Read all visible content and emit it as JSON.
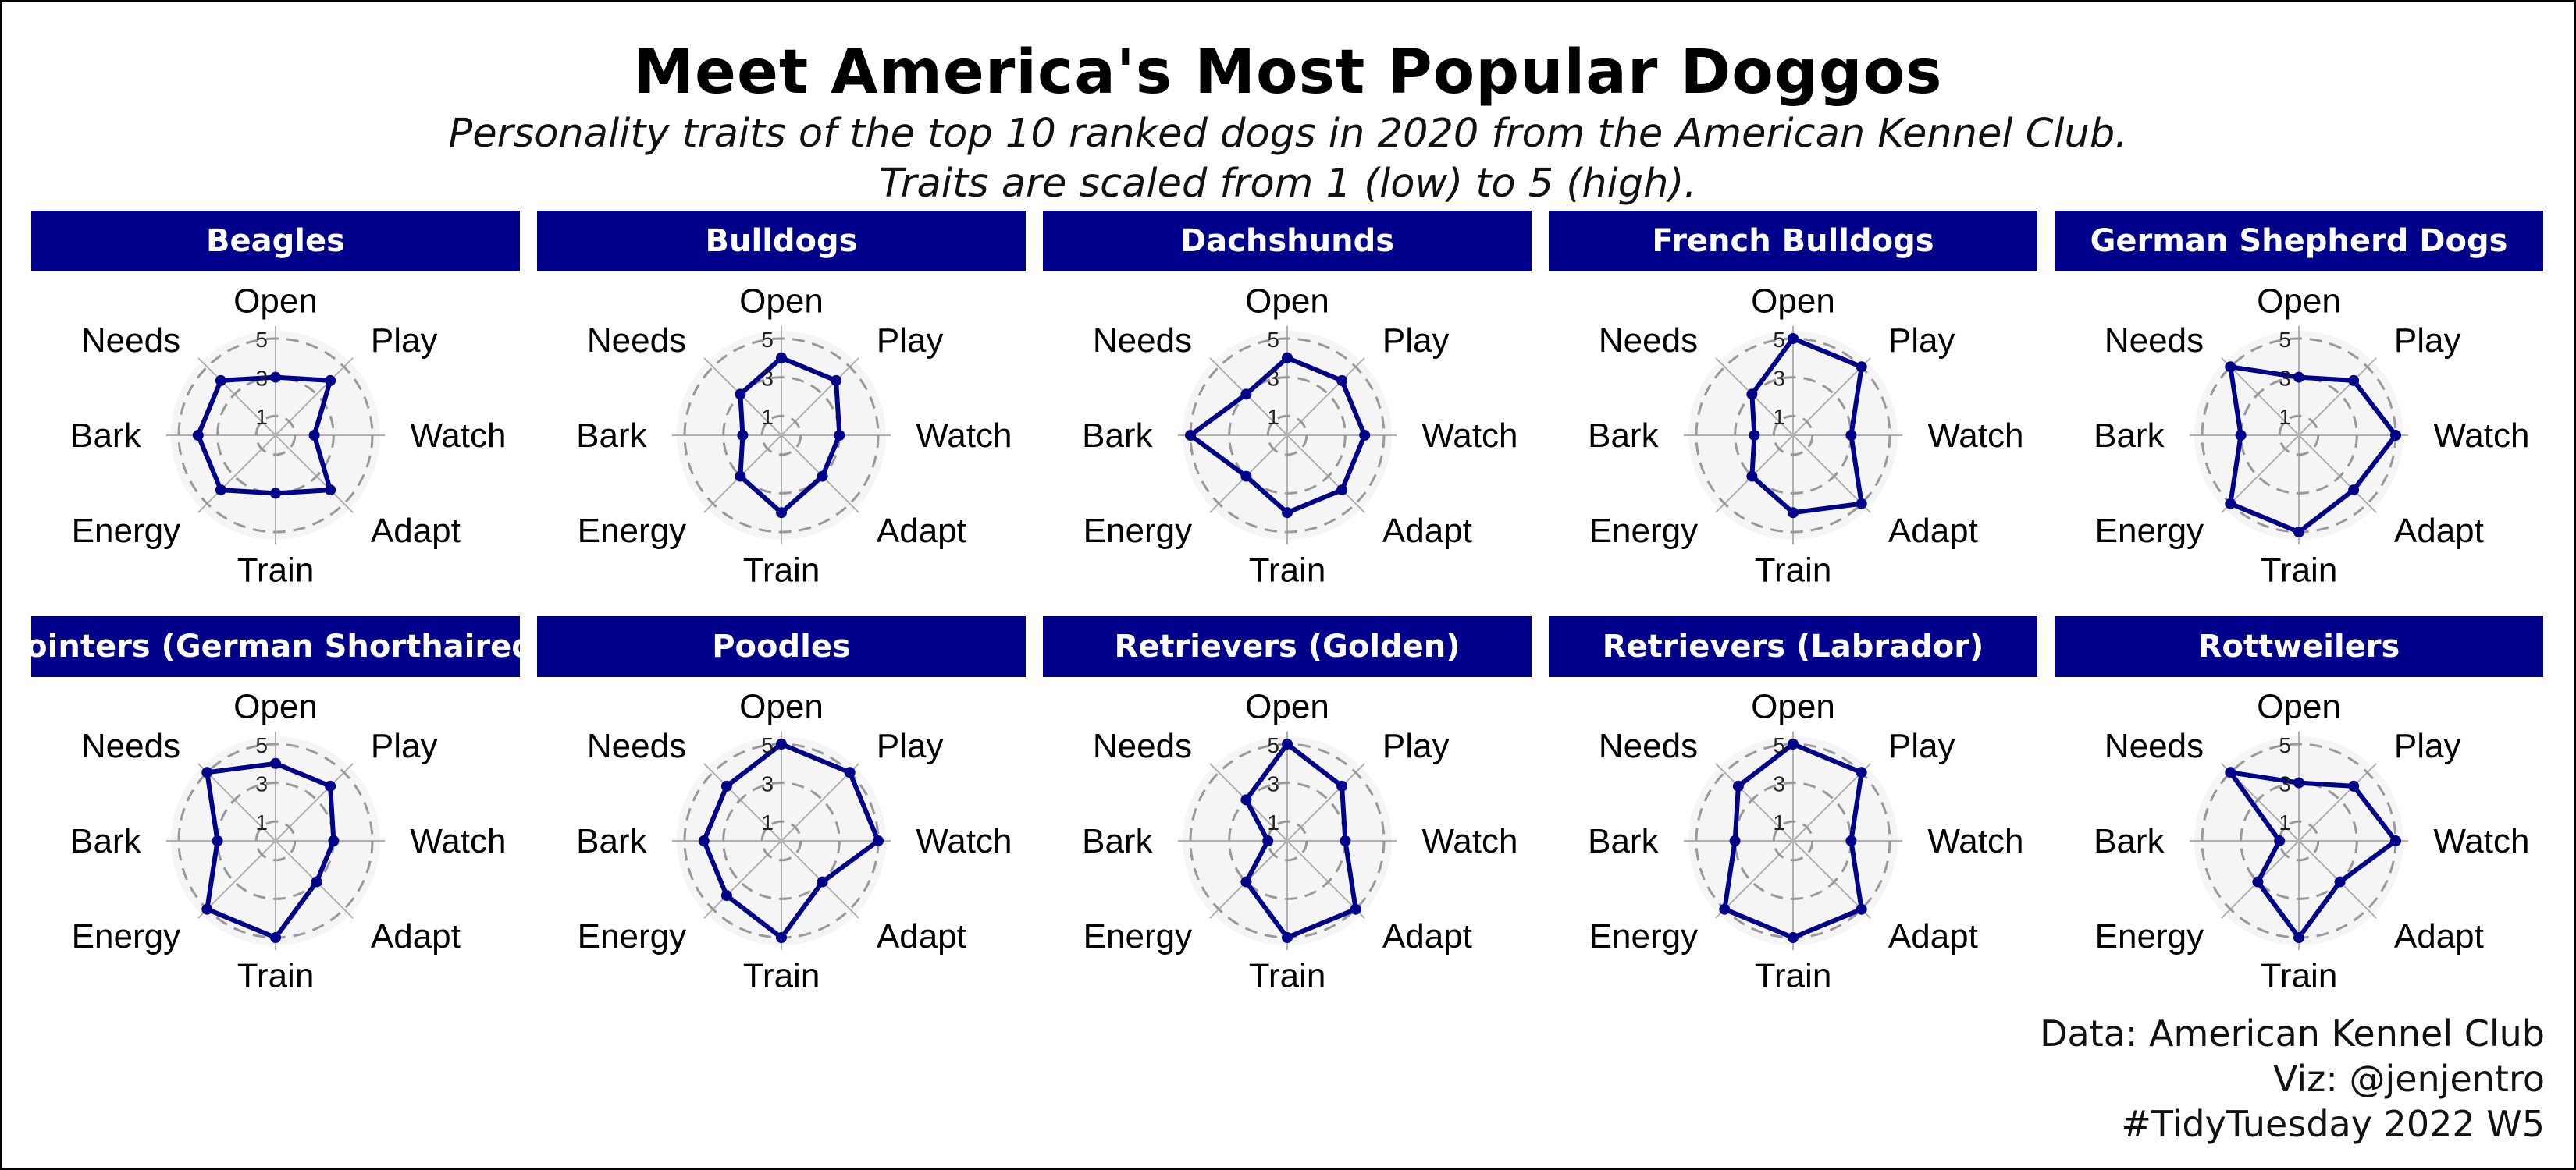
{
  "title": "Meet America's Most Popular Doggos",
  "subtitle": {
    "line1": "Personality traits of the top 10 ranked dogs in 2020 from the American Kennel Club.",
    "line2": "Traits are scaled from 1 (low) to 5 (high)."
  },
  "caption": {
    "line1": "Data: American Kennel Club",
    "line2": "Viz: @jenjentro",
    "line3": "#TidyTuesday 2022 W5"
  },
  "colors": {
    "strip": "#00008b",
    "line": "#00008b",
    "panel_fill": "#f5f5f5",
    "grid_ring": "#999999",
    "spoke": "#b0b0b0"
  },
  "chart_data": {
    "type": "radar",
    "axes": [
      "Open",
      "Play",
      "Watch",
      "Adapt",
      "Train",
      "Energy",
      "Bark",
      "Needs"
    ],
    "ring_labels": [
      "1",
      "3",
      "5"
    ],
    "rlim": [
      0,
      5
    ],
    "breeds": [
      {
        "name": "Beagles",
        "values": [
          3,
          4,
          2,
          4,
          3,
          4,
          4,
          4
        ]
      },
      {
        "name": "Bulldogs",
        "values": [
          4,
          4,
          3,
          3,
          4,
          3,
          2,
          3
        ]
      },
      {
        "name": "Dachshunds",
        "values": [
          4,
          4,
          4,
          4,
          4,
          3,
          5,
          3
        ]
      },
      {
        "name": "French Bulldogs",
        "values": [
          5,
          5,
          3,
          5,
          4,
          3,
          2,
          3
        ]
      },
      {
        "name": "German Shepherd Dogs",
        "values": [
          3,
          4,
          5,
          4,
          5,
          5,
          3,
          5
        ]
      },
      {
        "name": "Pointers (German Shorthaired)",
        "values": [
          4,
          4,
          3,
          3,
          5,
          5,
          3,
          5
        ]
      },
      {
        "name": "Poodles",
        "values": [
          5,
          5,
          5,
          3,
          5,
          4,
          4,
          4
        ]
      },
      {
        "name": "Retrievers (Golden)",
        "values": [
          5,
          4,
          3,
          5,
          5,
          3,
          1,
          3
        ]
      },
      {
        "name": "Retrievers (Labrador)",
        "values": [
          5,
          5,
          3,
          5,
          5,
          5,
          3,
          4
        ]
      },
      {
        "name": "Rottweilers",
        "values": [
          3,
          4,
          5,
          3,
          5,
          3,
          1,
          5
        ]
      }
    ]
  }
}
